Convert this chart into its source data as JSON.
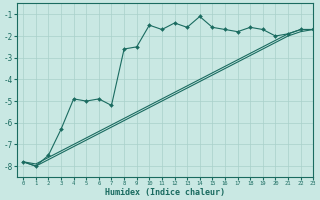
{
  "xlabel": "Humidex (Indice chaleur)",
  "ylabel": "",
  "xlim": [
    -0.5,
    23
  ],
  "ylim": [
    -8.5,
    -0.5
  ],
  "yticks": [
    -8,
    -7,
    -6,
    -5,
    -4,
    -3,
    -2,
    -1
  ],
  "xticks": [
    0,
    1,
    2,
    3,
    4,
    5,
    6,
    7,
    8,
    9,
    10,
    11,
    12,
    13,
    14,
    15,
    16,
    17,
    18,
    19,
    20,
    21,
    22,
    23
  ],
  "background_color": "#c9e8e3",
  "grid_color": "#a8d0ca",
  "line_color": "#1a6b60",
  "line1_x": [
    0,
    1,
    2,
    3,
    4,
    5,
    6,
    7,
    8,
    9,
    10,
    11,
    12,
    13,
    14,
    15,
    16,
    17,
    18,
    19,
    20,
    21,
    22,
    23
  ],
  "line1_y": [
    -7.8,
    -8.0,
    -7.5,
    -6.3,
    -4.9,
    -5.0,
    -4.9,
    -5.2,
    -2.6,
    -2.5,
    -1.5,
    -1.7,
    -1.4,
    -1.6,
    -1.1,
    -1.6,
    -1.7,
    -1.8,
    -1.6,
    -1.7,
    -2.0,
    -1.9,
    -1.7,
    -1.7
  ],
  "line2_x": [
    0,
    1,
    2,
    3,
    4,
    5,
    6,
    7,
    8,
    9,
    10,
    11,
    12,
    13,
    14,
    15,
    16,
    17,
    18,
    19,
    20,
    21,
    22,
    23
  ],
  "line2_y": [
    -7.8,
    -7.9,
    -7.6,
    -7.3,
    -7.0,
    -6.7,
    -6.4,
    -6.1,
    -5.8,
    -5.5,
    -5.2,
    -4.9,
    -4.6,
    -4.3,
    -4.0,
    -3.7,
    -3.4,
    -3.1,
    -2.8,
    -2.5,
    -2.2,
    -1.9,
    -1.7,
    -1.7
  ],
  "line3_x": [
    0,
    1,
    2,
    3,
    4,
    5,
    6,
    7,
    8,
    9,
    10,
    11,
    12,
    13,
    14,
    15,
    16,
    17,
    18,
    19,
    20,
    21,
    22,
    23
  ],
  "line3_y": [
    -7.8,
    -8.0,
    -7.7,
    -7.4,
    -7.1,
    -6.8,
    -6.5,
    -6.2,
    -5.9,
    -5.6,
    -5.3,
    -5.0,
    -4.7,
    -4.4,
    -4.1,
    -3.8,
    -3.5,
    -3.2,
    -2.9,
    -2.6,
    -2.3,
    -2.0,
    -1.8,
    -1.7
  ]
}
